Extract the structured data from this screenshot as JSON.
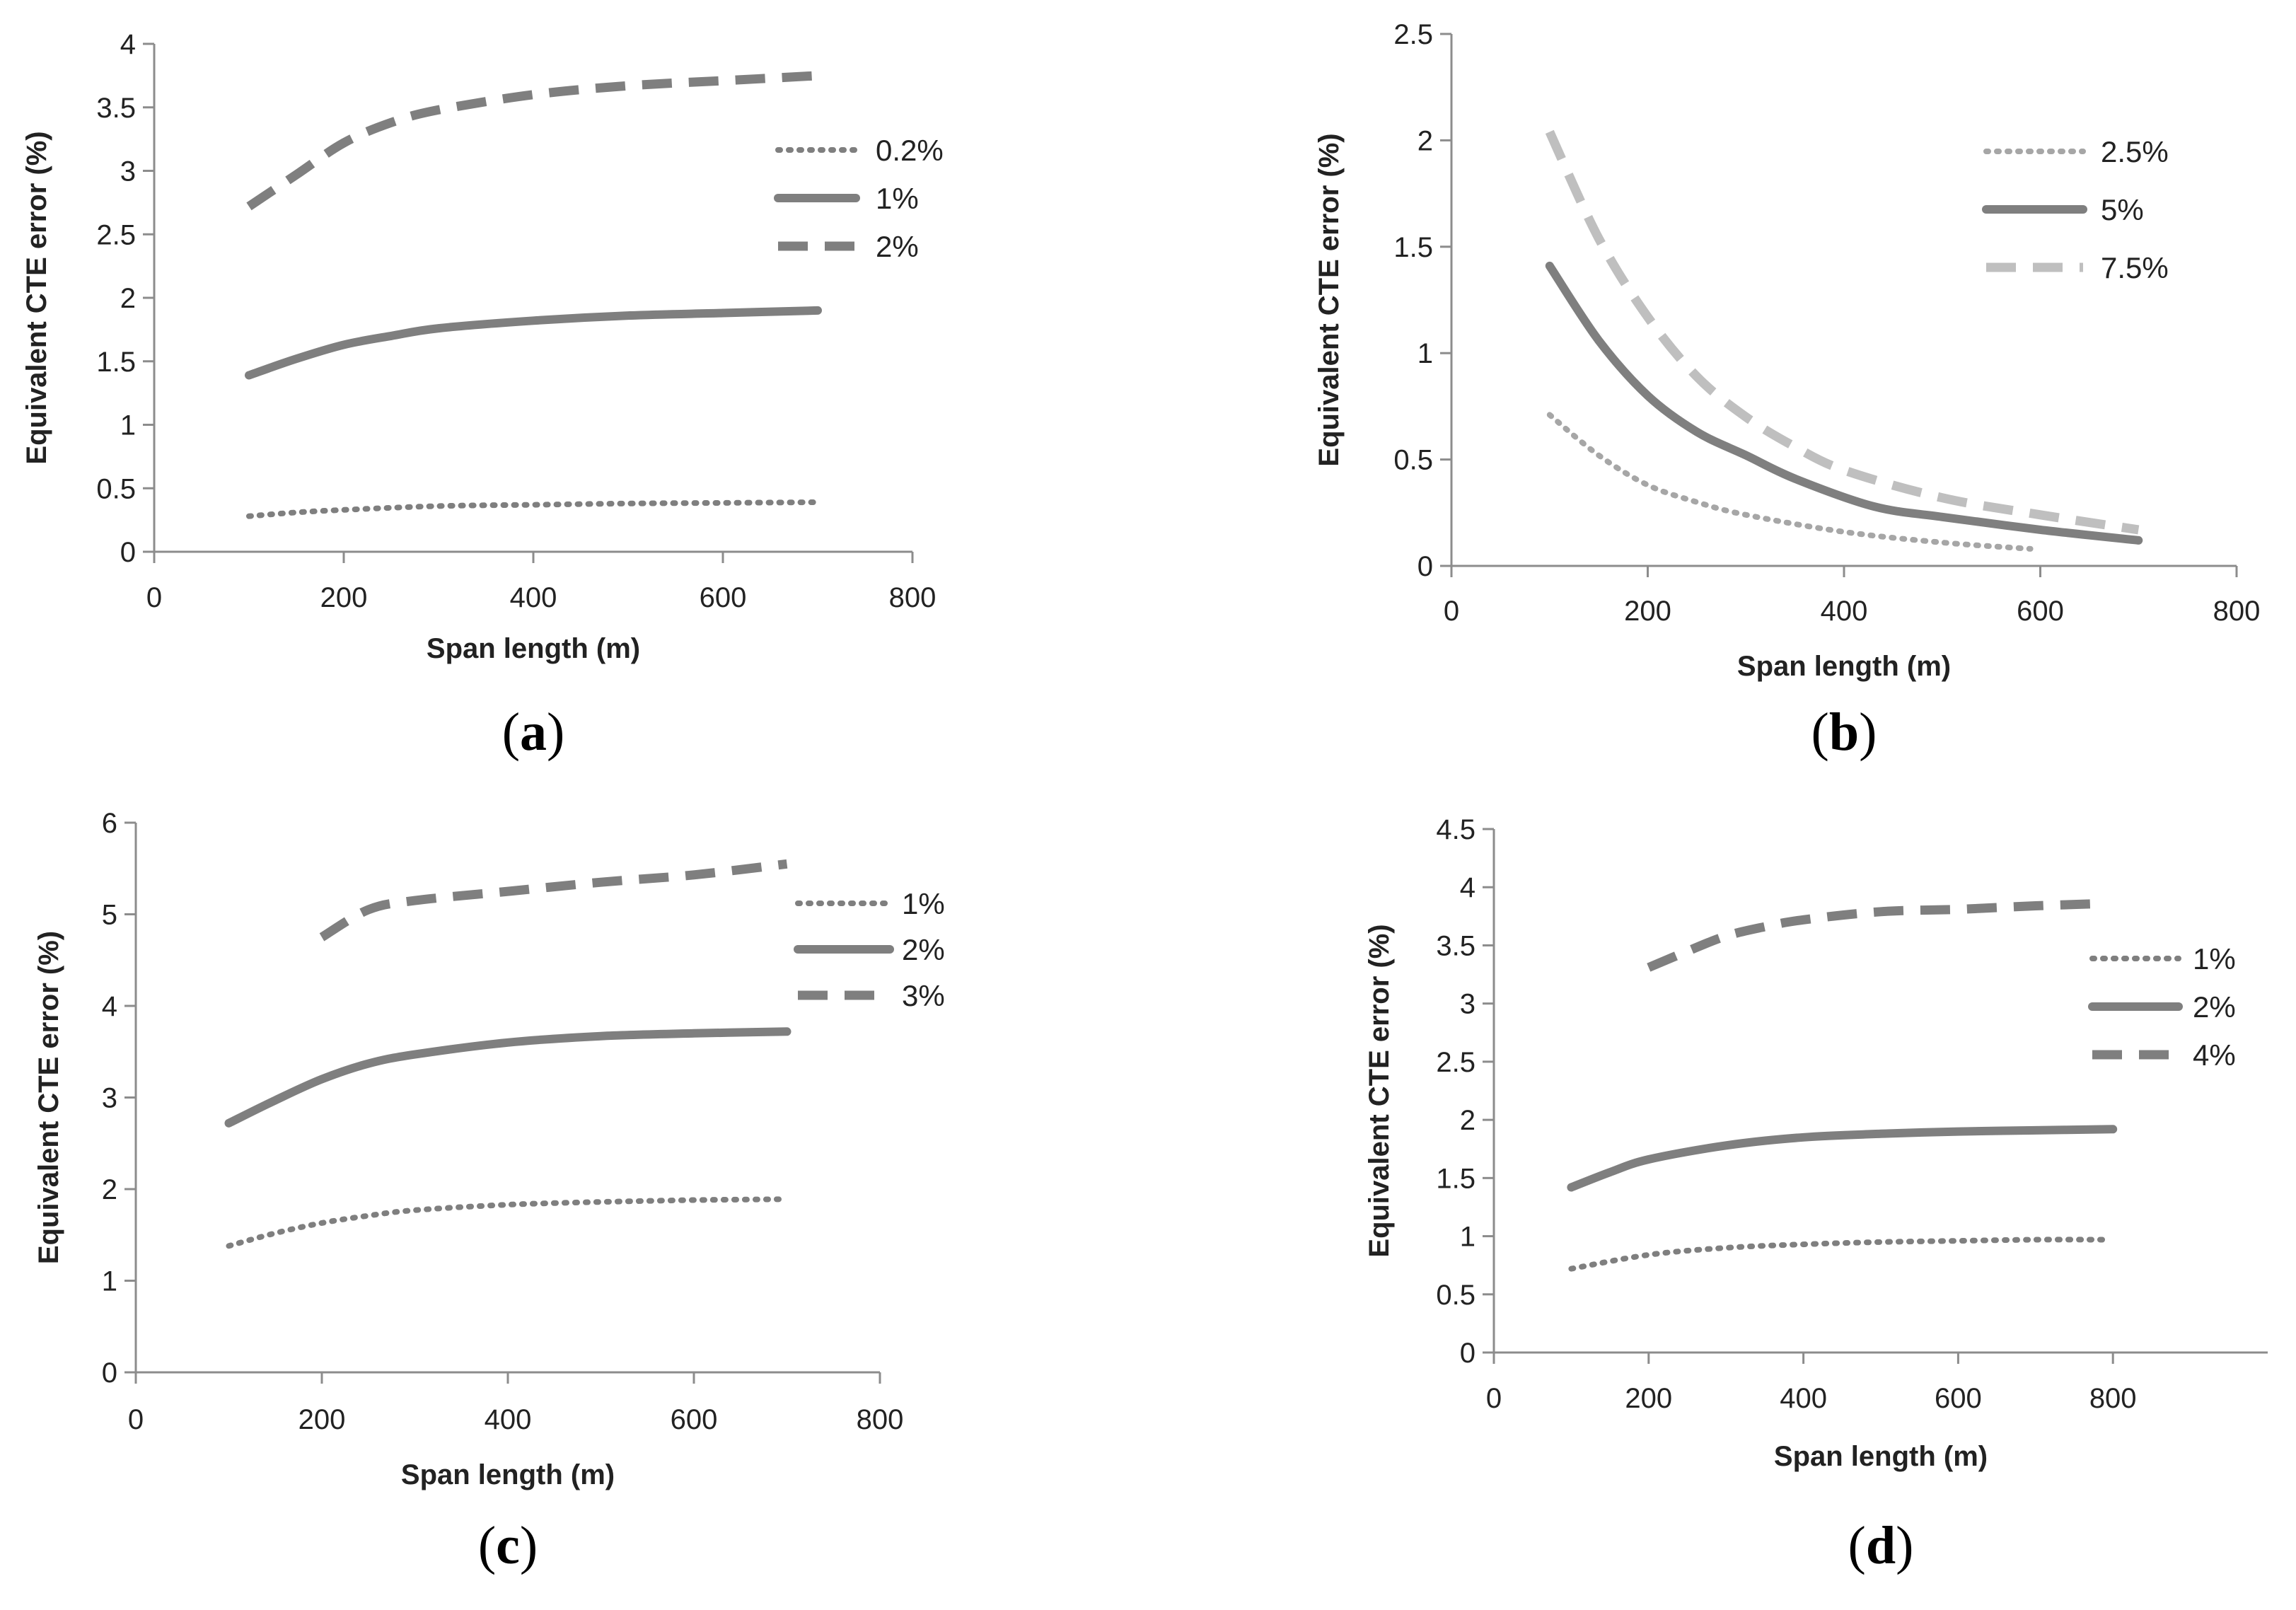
{
  "chart_data": [
    {
      "type": "line",
      "panel": "a",
      "caption": "a",
      "xlabel": "Span length (m)",
      "ylabel": "Equivalent  CTE error (%)",
      "xlim": [
        0,
        800
      ],
      "ylim": [
        0,
        4
      ],
      "xticks": [
        0,
        200,
        400,
        600,
        800
      ],
      "yticks": [
        0,
        0.5,
        1,
        1.5,
        2,
        2.5,
        3,
        3.5,
        4
      ],
      "xtick_labels": [
        "0",
        "200",
        "400",
        "600",
        "800"
      ],
      "ytick_labels": [
        "0",
        "0.5",
        "1",
        "1.5",
        "2",
        "2.5",
        "3",
        "3.5",
        "4"
      ],
      "legend_position": "right",
      "series": [
        {
          "name": "0.2%",
          "style": "dotted",
          "color": "#7f7f7f",
          "x": [
            100,
            150,
            200,
            300,
            400,
            500,
            600,
            700
          ],
          "y": [
            0.28,
            0.31,
            0.33,
            0.36,
            0.37,
            0.38,
            0.385,
            0.39
          ]
        },
        {
          "name": "1%",
          "style": "solid",
          "color": "#7f7f7f",
          "x": [
            100,
            150,
            200,
            250,
            300,
            400,
            500,
            600,
            700
          ],
          "y": [
            1.39,
            1.52,
            1.63,
            1.7,
            1.76,
            1.82,
            1.86,
            1.88,
            1.9
          ]
        },
        {
          "name": "2%",
          "style": "dashed",
          "color": "#7f7f7f",
          "x": [
            100,
            150,
            200,
            250,
            300,
            400,
            500,
            600,
            700
          ],
          "y": [
            2.72,
            2.97,
            3.22,
            3.38,
            3.48,
            3.6,
            3.67,
            3.71,
            3.75
          ]
        }
      ]
    },
    {
      "type": "line",
      "panel": "b",
      "caption": "b",
      "xlabel": "Span length (m)",
      "ylabel": "Equivalent  CTE error (%)",
      "xlim": [
        0,
        800
      ],
      "ylim": [
        0,
        2.5
      ],
      "xticks": [
        0,
        200,
        400,
        600,
        800
      ],
      "yticks": [
        0,
        0.5,
        1,
        1.5,
        2,
        2.5
      ],
      "xtick_labels": [
        "0",
        "200",
        "400",
        "600",
        "800"
      ],
      "ytick_labels": [
        "0",
        "0.5",
        "1",
        "1.5",
        "2",
        "2.5"
      ],
      "legend_position": "top-right",
      "series": [
        {
          "name": "2.5%",
          "style": "dotted",
          "color": "#a6a6a6",
          "x": [
            100,
            150,
            200,
            250,
            300,
            400,
            500,
            590
          ],
          "y": [
            0.71,
            0.52,
            0.38,
            0.3,
            0.24,
            0.16,
            0.11,
            0.08
          ]
        },
        {
          "name": "5%",
          "style": "solid",
          "color": "#7f7f7f",
          "x": [
            100,
            150,
            200,
            250,
            300,
            350,
            430,
            500,
            600,
            700
          ],
          "y": [
            1.41,
            1.06,
            0.8,
            0.63,
            0.52,
            0.41,
            0.28,
            0.23,
            0.17,
            0.12
          ]
        },
        {
          "name": "7.5%",
          "style": "dashed",
          "color": "#bfbfbf",
          "x": [
            100,
            150,
            200,
            250,
            300,
            350,
            400,
            500,
            600,
            700
          ],
          "y": [
            2.04,
            1.54,
            1.17,
            0.89,
            0.7,
            0.56,
            0.45,
            0.32,
            0.24,
            0.17
          ]
        }
      ]
    },
    {
      "type": "line",
      "panel": "c",
      "caption": "c",
      "xlabel": "Span length (m)",
      "ylabel": "Equivalent  CTE error (%)",
      "xlim": [
        0,
        800
      ],
      "ylim": [
        0,
        6
      ],
      "xticks": [
        0,
        200,
        400,
        600,
        800
      ],
      "yticks": [
        0,
        1,
        2,
        3,
        4,
        5,
        6
      ],
      "xtick_labels": [
        "0",
        "200",
        "400",
        "600",
        "800"
      ],
      "ytick_labels": [
        "0",
        "1",
        "2",
        "3",
        "4",
        "5",
        "6"
      ],
      "legend_position": "right",
      "series": [
        {
          "name": "1%",
          "style": "dotted",
          "color": "#7f7f7f",
          "x": [
            100,
            150,
            200,
            250,
            300,
            400,
            500,
            600,
            700
          ],
          "y": [
            1.38,
            1.52,
            1.63,
            1.71,
            1.77,
            1.83,
            1.86,
            1.88,
            1.89
          ]
        },
        {
          "name": "2%",
          "style": "solid",
          "color": "#7f7f7f",
          "x": [
            100,
            150,
            200,
            250,
            300,
            400,
            500,
            600,
            700
          ],
          "y": [
            2.72,
            2.97,
            3.2,
            3.37,
            3.47,
            3.6,
            3.67,
            3.7,
            3.72
          ]
        },
        {
          "name": "3%",
          "style": "dashed",
          "color": "#7f7f7f",
          "x": [
            200,
            250,
            300,
            400,
            500,
            600,
            700
          ],
          "y": [
            4.75,
            5.05,
            5.15,
            5.25,
            5.35,
            5.43,
            5.55
          ]
        }
      ]
    },
    {
      "type": "line",
      "panel": "d",
      "caption": "d",
      "xlabel": "Span length (m)",
      "ylabel": "Equivalent  CTE error (%)",
      "xlim": [
        0,
        1000
      ],
      "ylim": [
        0,
        4.5
      ],
      "xticks": [
        0,
        200,
        400,
        600,
        800
      ],
      "yticks": [
        0,
        0.5,
        1,
        1.5,
        2,
        2.5,
        3,
        3.5,
        4,
        4.5
      ],
      "xtick_labels": [
        "0",
        "200",
        "400",
        "600",
        "800"
      ],
      "ytick_labels": [
        "0",
        "0.5",
        "1",
        "1.5",
        "2",
        "2.5",
        "3",
        "3.5",
        "4",
        "4.5"
      ],
      "legend_position": "right",
      "series": [
        {
          "name": "1%",
          "style": "dotted",
          "color": "#7f7f7f",
          "x": [
            100,
            200,
            300,
            400,
            500,
            600,
            700,
            790
          ],
          "y": [
            0.72,
            0.84,
            0.9,
            0.93,
            0.95,
            0.96,
            0.97,
            0.97
          ]
        },
        {
          "name": "2%",
          "style": "solid",
          "color": "#7f7f7f",
          "x": [
            100,
            150,
            200,
            300,
            400,
            500,
            600,
            700,
            800
          ],
          "y": [
            1.42,
            1.55,
            1.66,
            1.78,
            1.85,
            1.88,
            1.9,
            1.91,
            1.92
          ]
        },
        {
          "name": "4%",
          "style": "dashed",
          "color": "#7f7f7f",
          "x": [
            200,
            250,
            300,
            350,
            400,
            500,
            600,
            700,
            790
          ],
          "y": [
            3.31,
            3.45,
            3.58,
            3.66,
            3.72,
            3.79,
            3.81,
            3.84,
            3.86
          ]
        }
      ]
    }
  ]
}
